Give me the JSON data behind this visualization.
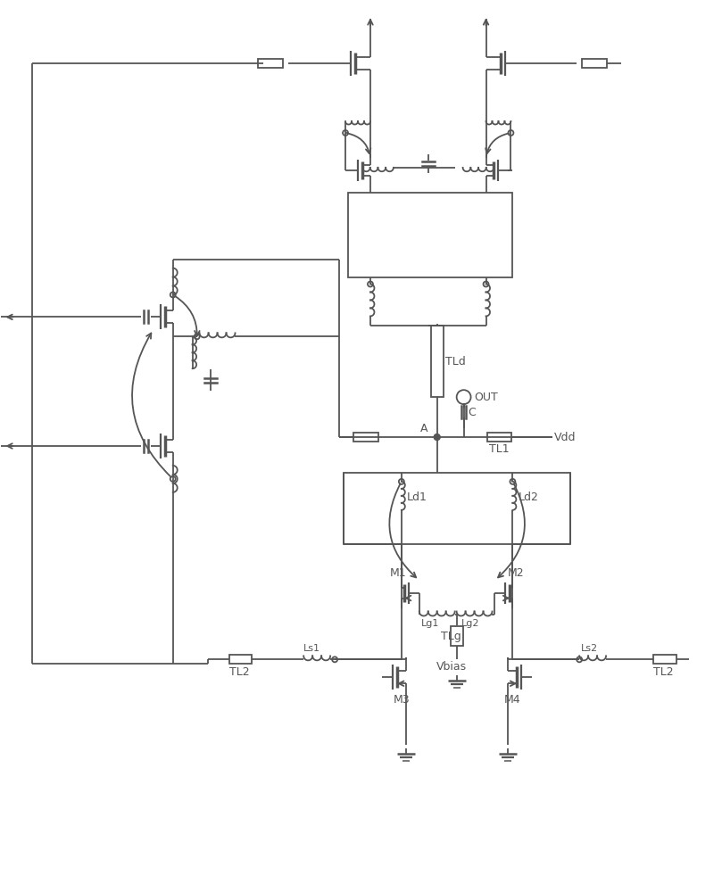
{
  "bg": "#ffffff",
  "lc": "#555555",
  "lw": 1.3,
  "figsize": [
    8.09,
    10.0
  ],
  "dpi": 100,
  "labels": {
    "TLd": "TLd",
    "TL1": "TL1",
    "TL2": "TL2",
    "Ld1": "Ld1",
    "Ld2": "Ld2",
    "Lg1": "Lg1",
    "Lg2": "Lg2",
    "Ls1": "Ls1",
    "Ls2": "Ls2",
    "TLg": "TLg",
    "Vbias": "Vbias",
    "M1": "M1",
    "M2": "M2",
    "M3": "M3",
    "M4": "M4",
    "A": "A",
    "C": "C",
    "OUT": "OUT",
    "Vdd": "Vdd"
  }
}
